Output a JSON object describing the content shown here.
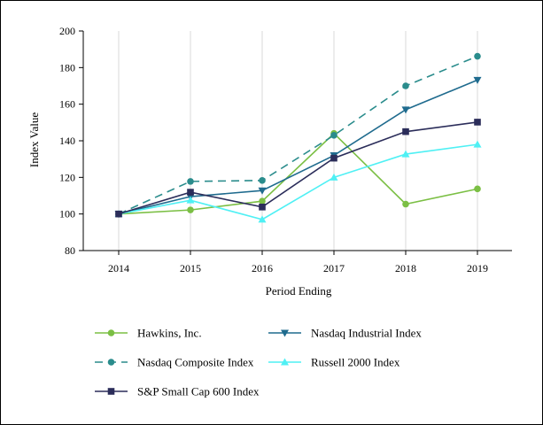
{
  "chart_data": {
    "type": "line",
    "title": "",
    "xlabel": "Period Ending",
    "ylabel": "Index Value",
    "x": [
      "2014",
      "2015",
      "2016",
      "2017",
      "2018",
      "2019"
    ],
    "ylim": [
      80,
      200
    ],
    "yticks": [
      "80",
      "100",
      "120",
      "140",
      "160",
      "180",
      "200"
    ],
    "grid": "vertical",
    "legend": "bottom",
    "series": [
      {
        "name": "Hawkins, Inc.",
        "values": [
          100,
          102.2,
          107.0,
          144.0,
          105.4,
          113.7
        ],
        "color": "#7bbf44",
        "marker": "circle",
        "dash": false
      },
      {
        "name": "Nasdaq Industrial Index",
        "values": [
          100,
          109.5,
          112.8,
          132.0,
          157.0,
          173.2
        ],
        "color": "#1f6b8e",
        "marker": "triangle-down",
        "dash": false
      },
      {
        "name": "Nasdaq Composite Index",
        "values": [
          100,
          117.8,
          118.3,
          143.0,
          170.0,
          186.2
        ],
        "color": "#2a8c8c",
        "marker": "circle",
        "dash": true
      },
      {
        "name": "Russell 2000 Index",
        "values": [
          100,
          107.5,
          97.0,
          120.0,
          132.7,
          138.0
        ],
        "color": "#4ff0f4",
        "marker": "triangle-up",
        "dash": false
      },
      {
        "name": "S&P Small Cap 600 Index",
        "values": [
          100,
          111.9,
          103.8,
          130.5,
          145.0,
          150.2
        ],
        "color": "#2b2d5a",
        "marker": "square",
        "dash": false
      }
    ]
  }
}
